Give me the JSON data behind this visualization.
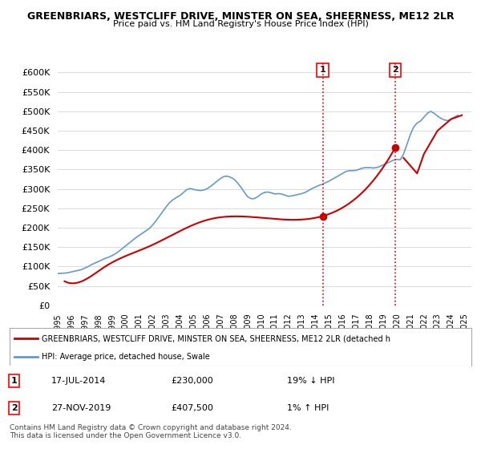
{
  "title": "GREENBRIARS, WESTCLIFF DRIVE, MINSTER ON SEA, SHEERNESS, ME12 2LR",
  "subtitle": "Price paid vs. HM Land Registry's House Price Index (HPI)",
  "ylabel": "",
  "ylim": [
    0,
    625000
  ],
  "yticks": [
    0,
    50000,
    100000,
    150000,
    200000,
    250000,
    300000,
    350000,
    400000,
    450000,
    500000,
    550000,
    600000
  ],
  "xlim_start": 1995.0,
  "xlim_end": 2025.5,
  "xtick_years": [
    1995,
    1996,
    1997,
    1998,
    1999,
    2000,
    2001,
    2002,
    2003,
    2004,
    2005,
    2006,
    2007,
    2008,
    2009,
    2010,
    2011,
    2012,
    2013,
    2014,
    2015,
    2016,
    2017,
    2018,
    2019,
    2020,
    2021,
    2022,
    2023,
    2024,
    2025
  ],
  "transaction1_x": 2014.54,
  "transaction1_y": 230000,
  "transaction2_x": 2019.9,
  "transaction2_y": 407500,
  "vline_color": "#dd0000",
  "vline_style": ":",
  "line_color_red": "#cc0000",
  "line_color_blue": "#6699cc",
  "legend_label_red": "GREENBRIARS, WESTCLIFF DRIVE, MINSTER ON SEA, SHEERNESS, ME12 2LR (detached h",
  "legend_label_blue": "HPI: Average price, detached house, Swale",
  "annotation1_num": "1",
  "annotation1_date": "17-JUL-2014",
  "annotation1_price": "£230,000",
  "annotation1_hpi": "19% ↓ HPI",
  "annotation2_num": "2",
  "annotation2_date": "27-NOV-2019",
  "annotation2_price": "£407,500",
  "annotation2_hpi": "1% ↑ HPI",
  "footer1": "Contains HM Land Registry data © Crown copyright and database right 2024.",
  "footer2": "This data is licensed under the Open Government Licence v3.0.",
  "background_color": "#ffffff",
  "plot_bg_color": "#ffffff",
  "grid_color": "#dddddd",
  "hpi_data_x": [
    1995.0,
    1995.25,
    1995.5,
    1995.75,
    1996.0,
    1996.25,
    1996.5,
    1996.75,
    1997.0,
    1997.25,
    1997.5,
    1997.75,
    1998.0,
    1998.25,
    1998.5,
    1998.75,
    1999.0,
    1999.25,
    1999.5,
    1999.75,
    2000.0,
    2000.25,
    2000.5,
    2000.75,
    2001.0,
    2001.25,
    2001.5,
    2001.75,
    2002.0,
    2002.25,
    2002.5,
    2002.75,
    2003.0,
    2003.25,
    2003.5,
    2003.75,
    2004.0,
    2004.25,
    2004.5,
    2004.75,
    2005.0,
    2005.25,
    2005.5,
    2005.75,
    2006.0,
    2006.25,
    2006.5,
    2006.75,
    2007.0,
    2007.25,
    2007.5,
    2007.75,
    2008.0,
    2008.25,
    2008.5,
    2008.75,
    2009.0,
    2009.25,
    2009.5,
    2009.75,
    2010.0,
    2010.25,
    2010.5,
    2010.75,
    2011.0,
    2011.25,
    2011.5,
    2011.75,
    2012.0,
    2012.25,
    2012.5,
    2012.75,
    2013.0,
    2013.25,
    2013.5,
    2013.75,
    2014.0,
    2014.25,
    2014.5,
    2014.75,
    2015.0,
    2015.25,
    2015.5,
    2015.75,
    2016.0,
    2016.25,
    2016.5,
    2016.75,
    2017.0,
    2017.25,
    2017.5,
    2017.75,
    2018.0,
    2018.25,
    2018.5,
    2018.75,
    2019.0,
    2019.25,
    2019.5,
    2019.75,
    2020.0,
    2020.25,
    2020.5,
    2020.75,
    2021.0,
    2021.25,
    2021.5,
    2021.75,
    2022.0,
    2022.25,
    2022.5,
    2022.75,
    2023.0,
    2023.25,
    2023.5,
    2023.75,
    2024.0,
    2024.25,
    2024.5
  ],
  "hpi_data_y": [
    82000,
    82500,
    83000,
    84000,
    86000,
    88000,
    90000,
    92000,
    96000,
    100000,
    105000,
    109000,
    113000,
    117000,
    121000,
    124000,
    128000,
    133000,
    139000,
    146000,
    153000,
    160000,
    167000,
    174000,
    180000,
    186000,
    192000,
    198000,
    207000,
    218000,
    230000,
    242000,
    254000,
    265000,
    272000,
    278000,
    283000,
    290000,
    298000,
    301000,
    299000,
    297000,
    296000,
    297000,
    300000,
    306000,
    313000,
    320000,
    327000,
    332000,
    333000,
    330000,
    325000,
    316000,
    305000,
    292000,
    280000,
    275000,
    275000,
    280000,
    287000,
    291000,
    292000,
    290000,
    287000,
    288000,
    287000,
    284000,
    281000,
    282000,
    284000,
    286000,
    288000,
    291000,
    296000,
    301000,
    305000,
    309000,
    312000,
    316000,
    320000,
    325000,
    330000,
    335000,
    340000,
    345000,
    347000,
    347000,
    348000,
    351000,
    354000,
    355000,
    355000,
    354000,
    355000,
    358000,
    362000,
    366000,
    370000,
    374000,
    376000,
    375000,
    390000,
    415000,
    440000,
    460000,
    470000,
    475000,
    485000,
    495000,
    500000,
    495000,
    488000,
    482000,
    478000,
    476000,
    480000,
    485000,
    490000
  ],
  "price_data_x": [
    1995.5,
    1997.75,
    1998.5,
    2001.75,
    2006.0,
    2014.54,
    2019.9
  ],
  "price_data_y": [
    62000,
    82000,
    100000,
    152000,
    220000,
    230000,
    407500
  ]
}
